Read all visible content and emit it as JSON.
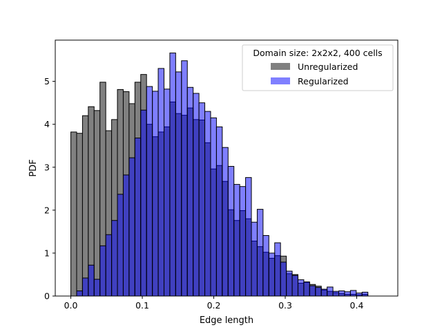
{
  "chart_data": {
    "type": "bar",
    "xlabel": "Edge length",
    "ylabel": "PDF",
    "xlim": [
      -0.0218,
      0.4575
    ],
    "ylim": [
      0,
      5.96
    ],
    "x_ticks": [
      0.0,
      0.1,
      0.2,
      0.3,
      0.4
    ],
    "x_tick_labels": [
      "0.0",
      "0.1",
      "0.2",
      "0.3",
      "0.4"
    ],
    "y_ticks": [
      0,
      1,
      2,
      3,
      4,
      5
    ],
    "y_tick_labels": [
      "0",
      "1",
      "2",
      "3",
      "4",
      "5"
    ],
    "grid": false,
    "legend": {
      "title": "Domain size: 2x2x2, 400 cells",
      "placement": "top-right",
      "entries": [
        "Unregularized",
        "Regularized"
      ]
    },
    "series": [
      {
        "name": "Unregularized",
        "color": "#808080",
        "bin_start": 0.0,
        "bin_width": 0.00815,
        "values": [
          3.82,
          3.79,
          4.2,
          4.41,
          4.32,
          4.98,
          3.85,
          4.11,
          4.81,
          4.76,
          4.48,
          4.98,
          5.16,
          4.0,
          3.71,
          3.82,
          3.94,
          4.52,
          4.25,
          4.21,
          4.38,
          4.11,
          4.1,
          3.57,
          2.96,
          3.04,
          2.67,
          2.01,
          1.76,
          1.99,
          1.8,
          1.28,
          1.15,
          1.02,
          0.88,
          0.94,
          0.93,
          0.52,
          0.5,
          0.3,
          0.32,
          0.27,
          0.23,
          0.14,
          0.11,
          0.08,
          0.06,
          0.04,
          0.04,
          0.03,
          0.04
        ]
      },
      {
        "name": "Regularized",
        "color": "#0000ff",
        "bin_start": 0.0,
        "bin_width": 0.00815,
        "values": [
          0.0,
          0.12,
          0.42,
          0.72,
          0.39,
          1.17,
          1.43,
          1.76,
          2.37,
          2.82,
          3.22,
          3.68,
          4.33,
          4.88,
          4.77,
          5.3,
          4.82,
          5.66,
          5.22,
          5.48,
          4.86,
          4.72,
          4.5,
          4.3,
          4.15,
          3.94,
          3.46,
          3.02,
          2.6,
          2.55,
          2.76,
          1.72,
          2.02,
          1.41,
          1.0,
          1.24,
          0.79,
          0.58,
          0.48,
          0.38,
          0.33,
          0.24,
          0.2,
          0.16,
          0.21,
          0.11,
          0.12,
          0.1,
          0.13,
          0.07,
          0.09
        ]
      }
    ]
  }
}
